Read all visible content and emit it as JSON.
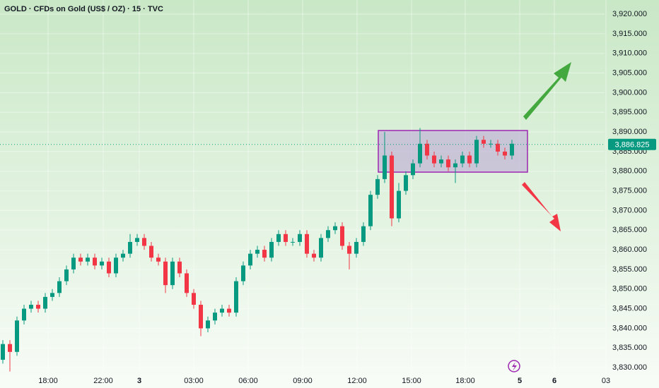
{
  "chart_data": {
    "type": "candlestick",
    "title": "GOLD · CFDs on Gold (US$ / OZ) · 15 · TVC",
    "x_labels": [
      "18:00",
      "22:00",
      "3",
      "03:00",
      "06:00",
      "09:00",
      "12:00",
      "15:00",
      "18:00",
      "5",
      "6",
      "03"
    ],
    "open": [
      3832,
      3836,
      3834,
      3842,
      3845,
      3846,
      3845,
      3848,
      3849,
      3852,
      3855,
      3858,
      3857,
      3858,
      3856,
      3857,
      3854,
      3858,
      3859,
      3862,
      3863,
      3861,
      3858,
      3857,
      3851,
      3857,
      3854,
      3849,
      3846,
      3840,
      3842,
      3844,
      3845,
      3844,
      3852,
      3856,
      3859,
      3860,
      3858,
      3862,
      3864,
      3862,
      3862,
      3864,
      3859,
      3858,
      3863,
      3865,
      3866,
      3861,
      3859,
      3862,
      3866,
      3874,
      3878,
      3884,
      3868,
      3875,
      3879,
      3882,
      3887,
      3884,
      3882,
      3883,
      3881,
      3882,
      3884,
      3882,
      3888,
      3887,
      3887,
      3885,
      3884
    ],
    "high": [
      3837,
      3837,
      3843,
      3846,
      3847,
      3847,
      3849,
      3850,
      3853,
      3856,
      3859,
      3859,
      3859,
      3859,
      3858,
      3858,
      3859,
      3860,
      3864,
      3864,
      3864,
      3862,
      3859,
      3858,
      3858,
      3858,
      3855,
      3850,
      3847,
      3843,
      3845,
      3846,
      3846,
      3853,
      3857,
      3860,
      3861,
      3861,
      3863,
      3865,
      3865,
      3863,
      3865,
      3865,
      3860,
      3864,
      3866,
      3867,
      3867,
      3862,
      3863,
      3867,
      3875,
      3879,
      3890,
      3885,
      3877,
      3880,
      3883,
      3891,
      3888,
      3885,
      3884,
      3884,
      3883,
      3885,
      3885,
      3889,
      3889,
      3888,
      3888,
      3886,
      3888
    ],
    "low": [
      3831,
      3829,
      3833,
      3841,
      3844,
      3844,
      3844,
      3847,
      3848,
      3851,
      3854,
      3856,
      3856,
      3855,
      3855,
      3853,
      3853,
      3857,
      3858,
      3861,
      3860,
      3857,
      3856,
      3849,
      3850,
      3853,
      3848,
      3845,
      3838,
      3839,
      3841,
      3843,
      3843,
      3843,
      3851,
      3855,
      3858,
      3857,
      3857,
      3861,
      3861,
      3861,
      3861,
      3858,
      3857,
      3857,
      3862,
      3864,
      3860,
      3855,
      3858,
      3861,
      3865,
      3873,
      3877,
      3866,
      3867,
      3874,
      3878,
      3881,
      3883,
      3881,
      3881,
      3880,
      3877,
      3881,
      3881,
      3881,
      3886,
      3886,
      3884,
      3883,
      3883
    ],
    "close": [
      3836,
      3834,
      3842,
      3845,
      3846,
      3845,
      3848,
      3849,
      3852,
      3855,
      3858,
      3857,
      3858,
      3856,
      3857,
      3854,
      3858,
      3859,
      3862,
      3863,
      3861,
      3858,
      3857,
      3851,
      3857,
      3854,
      3849,
      3846,
      3840,
      3842,
      3844,
      3845,
      3844,
      3852,
      3856,
      3859,
      3860,
      3858,
      3862,
      3864,
      3862,
      3862,
      3864,
      3859,
      3858,
      3863,
      3865,
      3866,
      3861,
      3859,
      3862,
      3866,
      3874,
      3878,
      3884,
      3868,
      3875,
      3879,
      3882,
      3887,
      3884,
      3882,
      3883,
      3881,
      3882,
      3884,
      3882,
      3888,
      3887,
      3887,
      3885,
      3884,
      3887
    ],
    "up_color": "#089981",
    "down_color": "#f23645",
    "ylim": [
      3828.4,
      3923.6
    ],
    "yticks": [
      {
        "value": 3830,
        "label": "3,830.000"
      },
      {
        "value": 3835,
        "label": "3,835.000"
      },
      {
        "value": 3840,
        "label": "3,840.000"
      },
      {
        "value": 3845,
        "label": "3,845.000"
      },
      {
        "value": 3850,
        "label": "3,850.000"
      },
      {
        "value": 3855,
        "label": "3,855.000"
      },
      {
        "value": 3860,
        "label": "3,860.000"
      },
      {
        "value": 3865,
        "label": "3,865.000"
      },
      {
        "value": 3870,
        "label": "3,870.000"
      },
      {
        "value": 3875,
        "label": "3,875.000"
      },
      {
        "value": 3880,
        "label": "3,880.000"
      },
      {
        "value": 3885,
        "label": "3,885.000"
      },
      {
        "value": 3890,
        "label": "3,890.000"
      },
      {
        "value": 3895,
        "label": "3,895.000"
      },
      {
        "value": 3900,
        "label": "3,900.000"
      },
      {
        "value": 3905,
        "label": "3,905.000"
      },
      {
        "value": 3910,
        "label": "3,910.000"
      },
      {
        "value": 3915,
        "label": "3,915.000"
      },
      {
        "value": 3920,
        "label": "3,920.000"
      }
    ],
    "last_price": {
      "value": 3886.825,
      "label": "3,886.825"
    },
    "grid": true
  }
}
